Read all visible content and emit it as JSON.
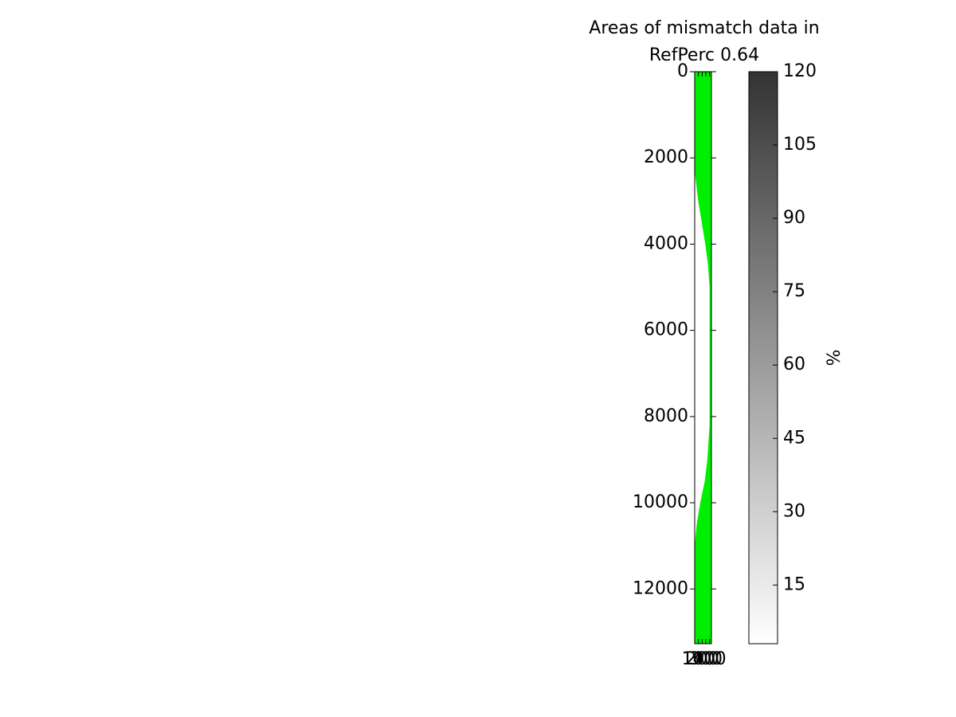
{
  "chart_data": {
    "type": "image-area",
    "title": [
      "Areas of mismatch data in",
      "RefPerc 0.64"
    ],
    "series": [
      {
        "color": "#00ee00",
        "y": [
          0,
          2000,
          2300,
          3000,
          3500,
          4000,
          4500,
          5000,
          8100,
          8200,
          9000,
          9500,
          10000,
          10500,
          11000,
          13270
        ],
        "x": [
          0,
          0,
          0,
          95,
          190,
          285,
          360,
          400,
          400,
          400,
          340,
          270,
          150,
          55,
          0,
          0
        ]
      }
    ],
    "xlim": [
      0,
      450
    ],
    "xticks": [
      100,
      200,
      300,
      400
    ],
    "ylim": [
      13270,
      0
    ],
    "yticks": [
      0,
      2000,
      4000,
      6000,
      8000,
      10000,
      12000
    ],
    "colorbar": {
      "label": "%",
      "lim": [
        3,
        120
      ],
      "ticks": [
        15,
        30,
        45,
        60,
        75,
        90,
        105,
        120
      ],
      "colors": [
        "#ffffff",
        "#333333"
      ]
    }
  }
}
